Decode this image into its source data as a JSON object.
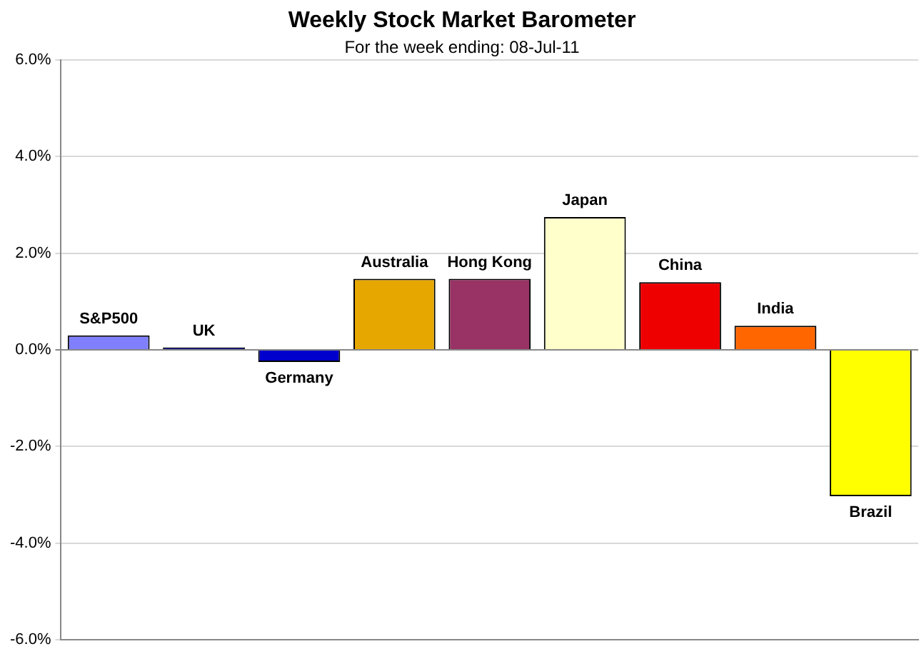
{
  "chart_data": {
    "type": "bar",
    "title": "Weekly Stock Market Barometer",
    "subtitle": "For the week ending: 08-Jul-11",
    "categories": [
      "S&P500",
      "UK",
      "Germany",
      "Australia",
      "Hong Kong",
      "Japan",
      "China",
      "India",
      "Brazil"
    ],
    "values": [
      0.3,
      0.05,
      -0.25,
      1.47,
      1.47,
      2.75,
      1.4,
      0.5,
      -3.03
    ],
    "colors": [
      "#8080ff",
      "#000080",
      "#0000cc",
      "#e6a800",
      "#993366",
      "#ffffcc",
      "#ee0000",
      "#ff6600",
      "#ffff00"
    ],
    "ylim": [
      -6,
      6
    ],
    "yticks": [
      {
        "value": -6,
        "label": "-6.0%"
      },
      {
        "value": -4,
        "label": "-4.0%"
      },
      {
        "value": -2,
        "label": "-2.0%"
      },
      {
        "value": 0,
        "label": "0.0%"
      },
      {
        "value": 2,
        "label": "2.0%"
      },
      {
        "value": 4,
        "label": "4.0%"
      },
      {
        "value": 6,
        "label": "6.0%"
      }
    ],
    "grid": "y",
    "tick_labels": "y"
  }
}
